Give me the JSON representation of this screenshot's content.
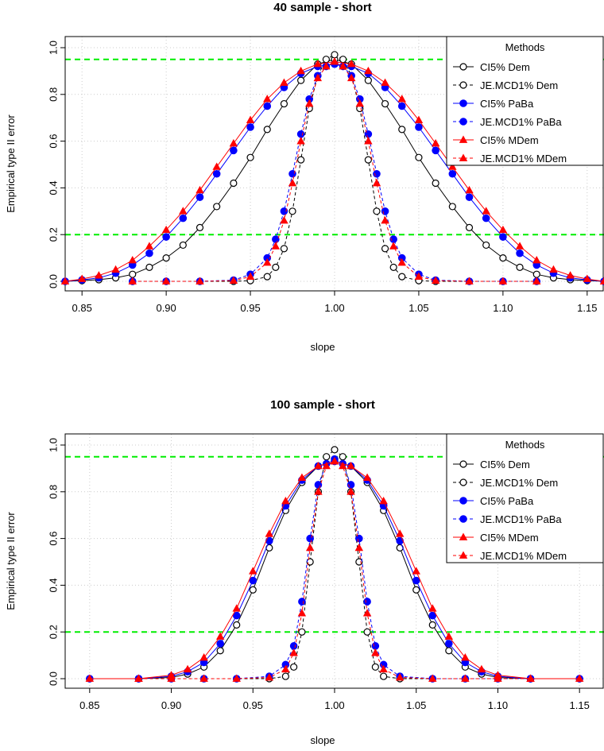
{
  "chart_data": [
    {
      "type": "line",
      "title": "40 sample - short",
      "xlabel": "slope",
      "ylabel": "Empirical type II error",
      "xlim": [
        0.84,
        1.16
      ],
      "ylim": [
        0.0,
        1.0
      ],
      "xticks": [
        "0.85",
        "0.90",
        "0.95",
        "1.00",
        "1.05",
        "1.10",
        "1.15"
      ],
      "xtick_values": [
        0.85,
        0.9,
        0.95,
        1.0,
        1.05,
        1.1,
        1.15
      ],
      "yticks": [
        "0.0",
        "0.2",
        "0.4",
        "0.6",
        "0.8",
        "1.0"
      ],
      "ytick_values": [
        0.0,
        0.2,
        0.4,
        0.6,
        0.8,
        1.0
      ],
      "hlines": [
        0.95,
        0.2
      ],
      "hline_color": "#00ee00",
      "grid": true,
      "legend": {
        "title": "Methods",
        "position": "top-right",
        "entries": [
          "CI5% Dem",
          "JE.MCD1% Dem",
          "CI5% PaBa",
          "JE.MCD1% PaBa",
          "CI5% MDem",
          "JE.MCD1% MDem"
        ]
      },
      "series": [
        {
          "name": "CI5% Dem",
          "color": "#000000",
          "dash": "solid",
          "marker": "circle-open",
          "x": [
            0.84,
            0.85,
            0.86,
            0.87,
            0.88,
            0.89,
            0.9,
            0.91,
            0.92,
            0.93,
            0.94,
            0.95,
            0.96,
            0.97,
            0.98,
            0.99,
            1.0,
            1.01,
            1.02,
            1.03,
            1.04,
            1.05,
            1.06,
            1.07,
            1.08,
            1.09,
            1.1,
            1.11,
            1.12,
            1.13,
            1.14,
            1.15,
            1.16
          ],
          "y": [
            0.0,
            0.003,
            0.007,
            0.015,
            0.03,
            0.06,
            0.1,
            0.155,
            0.23,
            0.32,
            0.42,
            0.53,
            0.65,
            0.76,
            0.86,
            0.93,
            0.95,
            0.93,
            0.86,
            0.76,
            0.65,
            0.53,
            0.42,
            0.32,
            0.23,
            0.155,
            0.1,
            0.06,
            0.03,
            0.015,
            0.007,
            0.003,
            0.0
          ]
        },
        {
          "name": "JE.MCD1% Dem",
          "color": "#000000",
          "dash": "dashed",
          "marker": "circle-open",
          "x": [
            0.88,
            0.9,
            0.92,
            0.94,
            0.95,
            0.96,
            0.965,
            0.97,
            0.975,
            0.98,
            0.985,
            0.99,
            0.995,
            1.0,
            1.005,
            1.01,
            1.015,
            1.02,
            1.025,
            1.03,
            1.035,
            1.04,
            1.05,
            1.06,
            1.08,
            1.1,
            1.12
          ],
          "y": [
            0.0,
            0.0,
            0.0,
            0.0,
            0.003,
            0.02,
            0.06,
            0.14,
            0.3,
            0.52,
            0.74,
            0.88,
            0.95,
            0.97,
            0.95,
            0.88,
            0.74,
            0.52,
            0.3,
            0.14,
            0.06,
            0.02,
            0.003,
            0.0,
            0.0,
            0.0,
            0.0
          ]
        },
        {
          "name": "CI5% PaBa",
          "color": "#0000ff",
          "dash": "solid",
          "marker": "circle-filled",
          "x": [
            0.84,
            0.85,
            0.86,
            0.87,
            0.88,
            0.89,
            0.9,
            0.91,
            0.92,
            0.93,
            0.94,
            0.95,
            0.96,
            0.97,
            0.98,
            0.99,
            1.0,
            1.01,
            1.02,
            1.03,
            1.04,
            1.05,
            1.06,
            1.07,
            1.08,
            1.09,
            1.1,
            1.11,
            1.12,
            1.13,
            1.14,
            1.15,
            1.16
          ],
          "y": [
            0.0,
            0.006,
            0.015,
            0.035,
            0.07,
            0.12,
            0.19,
            0.27,
            0.36,
            0.46,
            0.56,
            0.66,
            0.75,
            0.83,
            0.89,
            0.92,
            0.93,
            0.92,
            0.89,
            0.83,
            0.75,
            0.66,
            0.56,
            0.46,
            0.36,
            0.27,
            0.19,
            0.12,
            0.07,
            0.035,
            0.015,
            0.006,
            0.0
          ]
        },
        {
          "name": "JE.MCD1% PaBa",
          "color": "#0000ff",
          "dash": "dashed",
          "marker": "circle-filled",
          "x": [
            0.88,
            0.9,
            0.92,
            0.94,
            0.95,
            0.96,
            0.965,
            0.97,
            0.975,
            0.98,
            0.985,
            0.99,
            0.995,
            1.0,
            1.005,
            1.01,
            1.015,
            1.02,
            1.025,
            1.03,
            1.035,
            1.04,
            1.05,
            1.06,
            1.08,
            1.1,
            1.12
          ],
          "y": [
            0.0,
            0.0,
            0.0,
            0.005,
            0.03,
            0.1,
            0.18,
            0.3,
            0.46,
            0.63,
            0.78,
            0.88,
            0.92,
            0.93,
            0.92,
            0.88,
            0.78,
            0.63,
            0.46,
            0.3,
            0.18,
            0.1,
            0.03,
            0.005,
            0.0,
            0.0,
            0.0
          ]
        },
        {
          "name": "CI5% MDem",
          "color": "#ff0000",
          "dash": "solid",
          "marker": "triangle-filled",
          "x": [
            0.84,
            0.85,
            0.86,
            0.87,
            0.88,
            0.89,
            0.9,
            0.91,
            0.92,
            0.93,
            0.94,
            0.95,
            0.96,
            0.97,
            0.98,
            0.99,
            1.0,
            1.01,
            1.02,
            1.03,
            1.04,
            1.05,
            1.06,
            1.07,
            1.08,
            1.09,
            1.1,
            1.11,
            1.12,
            1.13,
            1.14,
            1.15,
            1.16
          ],
          "y": [
            0.0,
            0.01,
            0.025,
            0.05,
            0.09,
            0.15,
            0.22,
            0.3,
            0.39,
            0.49,
            0.59,
            0.69,
            0.78,
            0.85,
            0.9,
            0.93,
            0.94,
            0.93,
            0.9,
            0.85,
            0.78,
            0.69,
            0.59,
            0.49,
            0.39,
            0.3,
            0.22,
            0.15,
            0.09,
            0.05,
            0.025,
            0.01,
            0.0
          ]
        },
        {
          "name": "JE.MCD1% MDem",
          "color": "#ff0000",
          "dash": "dashed",
          "marker": "triangle-filled",
          "x": [
            0.88,
            0.9,
            0.92,
            0.94,
            0.95,
            0.96,
            0.965,
            0.97,
            0.975,
            0.98,
            0.985,
            0.99,
            0.995,
            1.0,
            1.005,
            1.01,
            1.015,
            1.02,
            1.025,
            1.03,
            1.035,
            1.04,
            1.05,
            1.06,
            1.08,
            1.1,
            1.12
          ],
          "y": [
            0.0,
            0.0,
            0.0,
            0.003,
            0.02,
            0.08,
            0.15,
            0.26,
            0.42,
            0.6,
            0.76,
            0.87,
            0.92,
            0.94,
            0.92,
            0.87,
            0.76,
            0.6,
            0.42,
            0.26,
            0.15,
            0.08,
            0.02,
            0.003,
            0.0,
            0.0,
            0.0
          ]
        }
      ]
    },
    {
      "type": "line",
      "title": "100 sample - short",
      "xlabel": "slope",
      "ylabel": "Empirical type II error",
      "xlim": [
        0.835,
        1.165
      ],
      "ylim": [
        0.0,
        1.0
      ],
      "xticks": [
        "0.85",
        "0.90",
        "0.95",
        "1.00",
        "1.05",
        "1.10",
        "1.15"
      ],
      "xtick_values": [
        0.85,
        0.9,
        0.95,
        1.0,
        1.05,
        1.1,
        1.15
      ],
      "yticks": [
        "0.0",
        "0.2",
        "0.4",
        "0.6",
        "0.8",
        "1.0"
      ],
      "ytick_values": [
        0.0,
        0.2,
        0.4,
        0.6,
        0.8,
        1.0
      ],
      "hlines": [
        0.95,
        0.2
      ],
      "hline_color": "#00ee00",
      "grid": true,
      "legend": {
        "title": "Methods",
        "position": "top-right",
        "entries": [
          "CI5% Dem",
          "JE.MCD1% Dem",
          "CI5% PaBa",
          "JE.MCD1% PaBa",
          "CI5% MDem",
          "JE.MCD1% MDem"
        ]
      },
      "series": [
        {
          "name": "CI5% Dem",
          "color": "#000000",
          "dash": "solid",
          "marker": "circle-open",
          "x": [
            0.85,
            0.88,
            0.9,
            0.91,
            0.92,
            0.93,
            0.94,
            0.95,
            0.96,
            0.97,
            0.98,
            0.99,
            1.0,
            1.01,
            1.02,
            1.03,
            1.04,
            1.05,
            1.06,
            1.07,
            1.08,
            1.09,
            1.1,
            1.12,
            1.15
          ],
          "y": [
            0.0,
            0.0,
            0.005,
            0.02,
            0.05,
            0.12,
            0.23,
            0.38,
            0.56,
            0.72,
            0.84,
            0.91,
            0.93,
            0.91,
            0.84,
            0.72,
            0.56,
            0.38,
            0.23,
            0.12,
            0.05,
            0.02,
            0.005,
            0.0,
            0.0
          ]
        },
        {
          "name": "JE.MCD1% Dem",
          "color": "#000000",
          "dash": "dashed",
          "marker": "circle-open",
          "x": [
            0.88,
            0.9,
            0.92,
            0.94,
            0.96,
            0.97,
            0.975,
            0.98,
            0.985,
            0.99,
            0.995,
            1.0,
            1.005,
            1.01,
            1.015,
            1.02,
            1.025,
            1.03,
            1.04,
            1.06,
            1.08,
            1.1,
            1.12
          ],
          "y": [
            0.0,
            0.0,
            0.0,
            0.0,
            0.0,
            0.01,
            0.05,
            0.2,
            0.5,
            0.8,
            0.95,
            0.98,
            0.95,
            0.8,
            0.5,
            0.2,
            0.05,
            0.01,
            0.0,
            0.0,
            0.0,
            0.0,
            0.0
          ]
        },
        {
          "name": "CI5% PaBa",
          "color": "#0000ff",
          "dash": "solid",
          "marker": "circle-filled",
          "x": [
            0.85,
            0.88,
            0.9,
            0.91,
            0.92,
            0.93,
            0.94,
            0.95,
            0.96,
            0.97,
            0.98,
            0.99,
            1.0,
            1.01,
            1.02,
            1.03,
            1.04,
            1.05,
            1.06,
            1.07,
            1.08,
            1.09,
            1.1,
            1.12,
            1.15
          ],
          "y": [
            0.0,
            0.0,
            0.01,
            0.03,
            0.07,
            0.15,
            0.27,
            0.42,
            0.59,
            0.74,
            0.85,
            0.91,
            0.93,
            0.91,
            0.85,
            0.74,
            0.59,
            0.42,
            0.27,
            0.15,
            0.07,
            0.03,
            0.01,
            0.0,
            0.0
          ]
        },
        {
          "name": "JE.MCD1% PaBa",
          "color": "#0000ff",
          "dash": "dashed",
          "marker": "circle-filled",
          "x": [
            0.88,
            0.9,
            0.92,
            0.94,
            0.96,
            0.97,
            0.975,
            0.98,
            0.985,
            0.99,
            0.995,
            1.0,
            1.005,
            1.01,
            1.015,
            1.02,
            1.025,
            1.03,
            1.04,
            1.06,
            1.08,
            1.1,
            1.12
          ],
          "y": [
            0.0,
            0.0,
            0.0,
            0.0,
            0.01,
            0.06,
            0.14,
            0.33,
            0.6,
            0.83,
            0.92,
            0.94,
            0.92,
            0.83,
            0.6,
            0.33,
            0.14,
            0.06,
            0.01,
            0.0,
            0.0,
            0.0,
            0.0
          ]
        },
        {
          "name": "CI5% MDem",
          "color": "#ff0000",
          "dash": "solid",
          "marker": "triangle-filled",
          "x": [
            0.85,
            0.88,
            0.9,
            0.91,
            0.92,
            0.93,
            0.94,
            0.95,
            0.96,
            0.97,
            0.98,
            0.99,
            1.0,
            1.01,
            1.02,
            1.03,
            1.04,
            1.05,
            1.06,
            1.07,
            1.08,
            1.09,
            1.1,
            1.12,
            1.15
          ],
          "y": [
            0.0,
            0.0,
            0.015,
            0.04,
            0.09,
            0.18,
            0.3,
            0.46,
            0.62,
            0.76,
            0.86,
            0.91,
            0.93,
            0.91,
            0.86,
            0.76,
            0.62,
            0.46,
            0.3,
            0.18,
            0.09,
            0.04,
            0.015,
            0.0,
            0.0
          ]
        },
        {
          "name": "JE.MCD1% MDem",
          "color": "#ff0000",
          "dash": "dashed",
          "marker": "triangle-filled",
          "x": [
            0.88,
            0.9,
            0.92,
            0.94,
            0.96,
            0.97,
            0.975,
            0.98,
            0.985,
            0.99,
            0.995,
            1.0,
            1.005,
            1.01,
            1.015,
            1.02,
            1.025,
            1.03,
            1.04,
            1.06,
            1.08,
            1.1,
            1.12
          ],
          "y": [
            0.0,
            0.0,
            0.0,
            0.0,
            0.005,
            0.04,
            0.11,
            0.28,
            0.56,
            0.8,
            0.91,
            0.93,
            0.91,
            0.8,
            0.56,
            0.28,
            0.11,
            0.04,
            0.005,
            0.0,
            0.0,
            0.0,
            0.0
          ]
        }
      ]
    }
  ]
}
